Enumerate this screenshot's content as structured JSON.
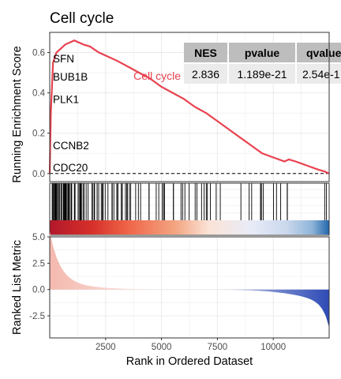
{
  "chart_data": {
    "type": "line",
    "title": "Cell cycle",
    "ylabel_top": "Running Enrichment Score",
    "ylabel_bottom": "Ranked List Metric",
    "xlabel": "Rank in Ordered Dataset",
    "xlim": [
      0,
      12500
    ],
    "ylim_es": [
      -0.04,
      0.7
    ],
    "ylim_metric": [
      -4.6,
      5.0
    ],
    "x_ticks": [
      2500,
      5000,
      7500,
      10000
    ],
    "x_tick_labels": [
      "2500",
      "5000",
      "7500",
      "10000"
    ],
    "es_ticks": [
      0.0,
      0.2,
      0.4,
      0.6
    ],
    "es_tick_labels": [
      "0.0",
      "0.2",
      "0.4",
      "0.6"
    ],
    "metric_ticks": [
      -2.5,
      0.0,
      2.5,
      5.0
    ],
    "metric_tick_labels": [
      "-2.5",
      "0.0",
      "2.5",
      "5.0"
    ],
    "series": [
      {
        "name": "Cell cycle",
        "color": "#E8424F",
        "x": [
          0,
          50,
          150,
          300,
          500,
          700,
          900,
          1100,
          1300,
          1500,
          1800,
          2200,
          2600,
          3000,
          3500,
          4000,
          4500,
          5000,
          5500,
          6000,
          6500,
          7000,
          7500,
          8000,
          8500,
          9000,
          9500,
          10000,
          10500,
          10700,
          11000,
          11500,
          12000,
          12300,
          12500
        ],
        "y": [
          0.0,
          0.3,
          0.55,
          0.6,
          0.62,
          0.64,
          0.65,
          0.66,
          0.65,
          0.64,
          0.63,
          0.6,
          0.58,
          0.56,
          0.53,
          0.5,
          0.47,
          0.43,
          0.4,
          0.37,
          0.33,
          0.3,
          0.26,
          0.22,
          0.18,
          0.14,
          0.1,
          0.08,
          0.06,
          0.07,
          0.06,
          0.04,
          0.02,
          0.01,
          0.0
        ]
      }
    ],
    "gene_labels": [
      {
        "label": "SFN",
        "y": 0.57
      },
      {
        "label": "BUB1B",
        "y": 0.48
      },
      {
        "label": "PLK1",
        "y": 0.37
      },
      {
        "label": "CCNB2",
        "y": 0.14
      },
      {
        "label": "CDC20",
        "y": 0.03
      }
    ],
    "stats_table": {
      "headers": [
        "NES",
        "pvalue",
        "qvalue"
      ],
      "row": [
        "2.836",
        "1.189e-21",
        "2.54e-1"
      ]
    },
    "grid": true,
    "colors": {
      "es_line": "#E8424F",
      "panel_border": "#333333",
      "grid": "#EBEBEB",
      "table_header": "#BDBDBD",
      "table_cell": "#EBEBEB"
    }
  }
}
